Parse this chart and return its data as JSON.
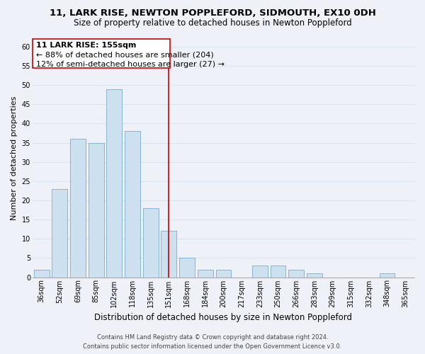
{
  "title": "11, LARK RISE, NEWTON POPPLEFORD, SIDMOUTH, EX10 0DH",
  "subtitle": "Size of property relative to detached houses in Newton Poppleford",
  "xlabel": "Distribution of detached houses by size in Newton Poppleford",
  "ylabel": "Number of detached properties",
  "bar_color": "#cce0f0",
  "bar_edge_color": "#7aadce",
  "categories": [
    "36sqm",
    "52sqm",
    "69sqm",
    "85sqm",
    "102sqm",
    "118sqm",
    "135sqm",
    "151sqm",
    "168sqm",
    "184sqm",
    "200sqm",
    "217sqm",
    "233sqm",
    "250sqm",
    "266sqm",
    "283sqm",
    "299sqm",
    "315sqm",
    "332sqm",
    "348sqm",
    "365sqm"
  ],
  "values": [
    2,
    23,
    36,
    35,
    49,
    38,
    18,
    12,
    5,
    2,
    2,
    0,
    3,
    3,
    2,
    1,
    0,
    0,
    0,
    1,
    0
  ],
  "ylim": [
    0,
    62
  ],
  "yticks": [
    0,
    5,
    10,
    15,
    20,
    25,
    30,
    35,
    40,
    45,
    50,
    55,
    60
  ],
  "vline_index": 7,
  "vline_color": "#cc0000",
  "annotation_title": "11 LARK RISE: 155sqm",
  "annotation_line1": "← 88% of detached houses are smaller (204)",
  "annotation_line2": "12% of semi-detached houses are larger (27) →",
  "footer_line1": "Contains HM Land Registry data © Crown copyright and database right 2024.",
  "footer_line2": "Contains public sector information licensed under the Open Government Licence v3.0.",
  "background_color": "#eef2f8",
  "grid_color": "#d8e4f0",
  "title_fontsize": 9.5,
  "subtitle_fontsize": 8.5,
  "xlabel_fontsize": 8.5,
  "ylabel_fontsize": 8,
  "tick_fontsize": 7,
  "annotation_fontsize": 8,
  "footer_fontsize": 6
}
